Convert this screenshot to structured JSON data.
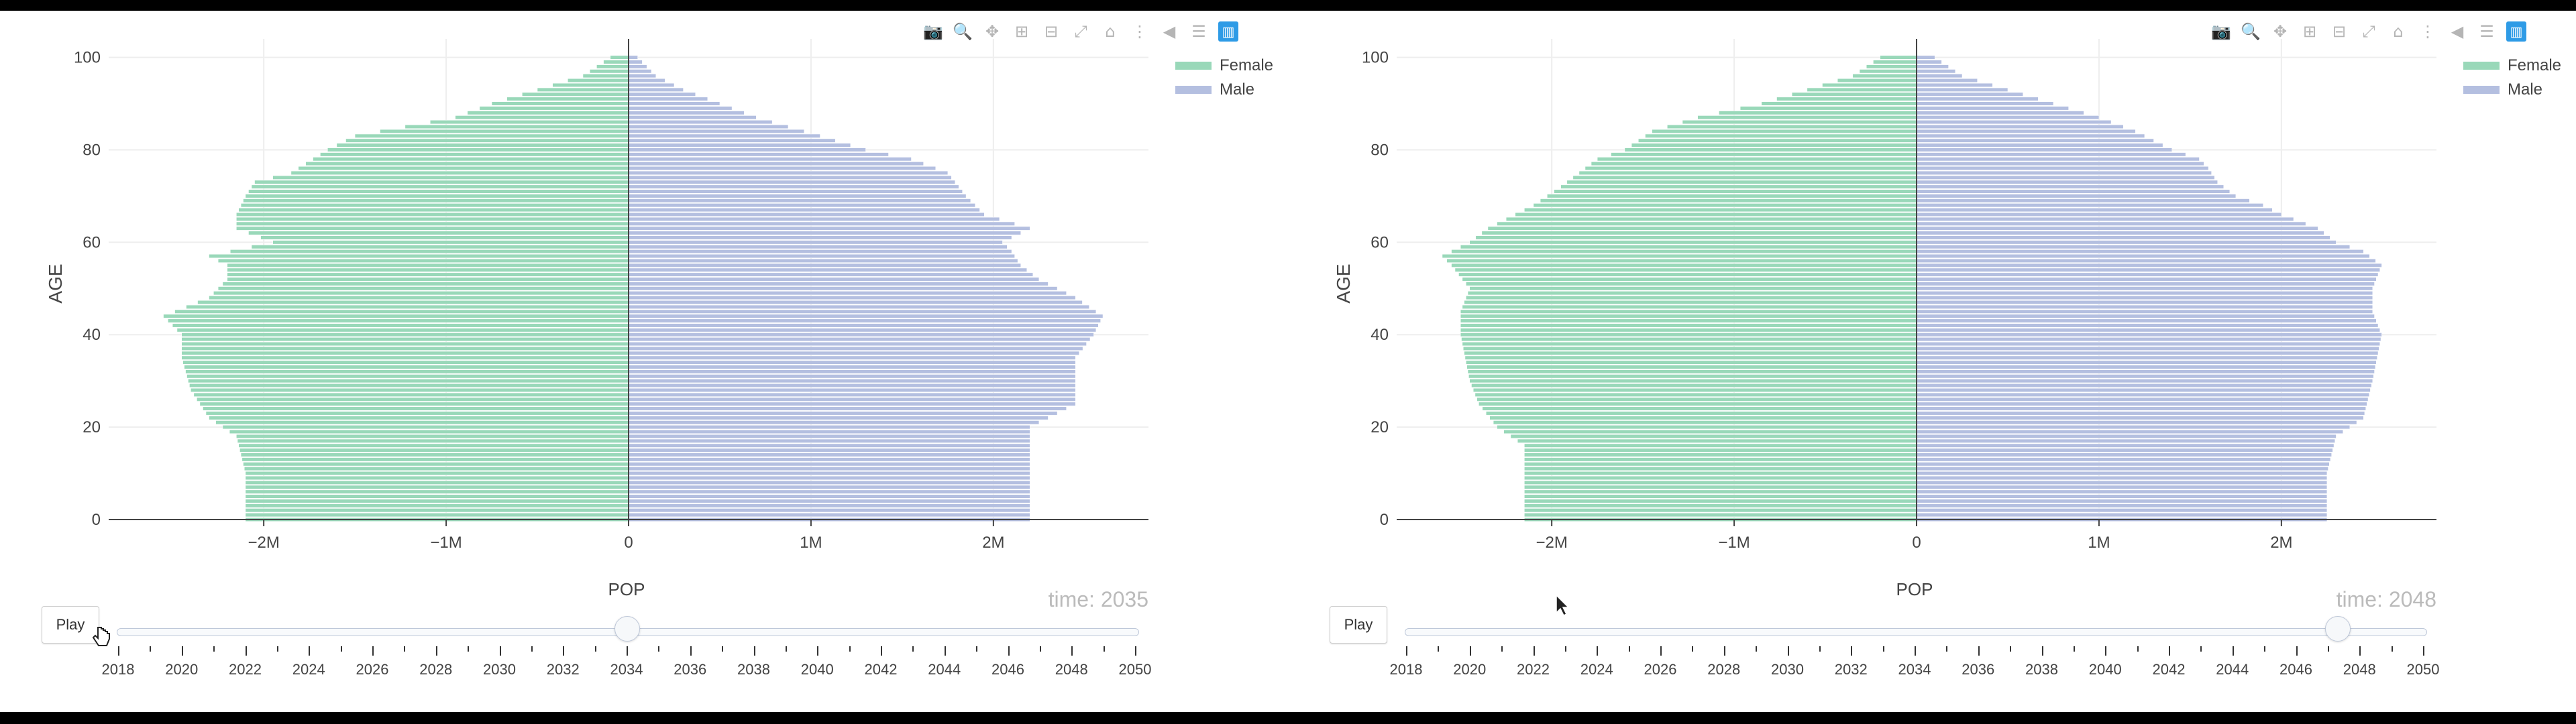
{
  "colors": {
    "female": "#99d8b9",
    "male": "#b4bfe0",
    "axis": "#444444",
    "grid": "#eeeeee",
    "modebar_active": "#2e9be6"
  },
  "modebar_icons": [
    "camera-icon",
    "zoom-icon",
    "pan-icon",
    "zoom-in-icon",
    "zoom-out-icon",
    "autoscale-icon",
    "home-icon",
    "spike-lines-icon",
    "hover-closest-icon",
    "hover-compare-icon",
    "plotly-logo-icon"
  ],
  "controls": {
    "play_label": "Play"
  },
  "panels": [
    {
      "time_label": "time: 2035",
      "slider_value": 2034
    },
    {
      "time_label": "time: 2048",
      "slider_value": 2047.3
    }
  ],
  "slider": {
    "years": [
      "2018",
      "2020",
      "2022",
      "2024",
      "2026",
      "2028",
      "2030",
      "2032",
      "2034",
      "2036",
      "2038",
      "2040",
      "2042",
      "2044",
      "2046",
      "2048",
      "2050"
    ],
    "min": 2018,
    "max": 2050
  },
  "chart_data": [
    {
      "type": "bar",
      "orientation": "horizontal",
      "xlabel": "POP",
      "ylabel": "AGE",
      "xlim": [
        -2.85,
        2.85
      ],
      "ylim": [
        0,
        104
      ],
      "x_ticks": [
        "−2M",
        "−1M",
        "0",
        "1M",
        "2M"
      ],
      "y_ticks": [
        "0",
        "20",
        "40",
        "60",
        "80",
        "100"
      ],
      "legend": {
        "position": "top-right",
        "entries": [
          "Female",
          "Male"
        ]
      },
      "series": [
        {
          "name": "Female",
          "color": "#99d8b9",
          "knots": [
            [
              0,
              -2.1
            ],
            [
              10,
              -2.1
            ],
            [
              18,
              -2.15
            ],
            [
              22,
              -2.3
            ],
            [
              28,
              -2.4
            ],
            [
              35,
              -2.45
            ],
            [
              40,
              -2.45
            ],
            [
              44,
              -2.55
            ],
            [
              48,
              -2.3
            ],
            [
              52,
              -2.2
            ],
            [
              55,
              -2.2
            ],
            [
              57,
              -2.3
            ],
            [
              60,
              -1.95
            ],
            [
              63,
              -2.15
            ],
            [
              66,
              -2.15
            ],
            [
              70,
              -2.1
            ],
            [
              73,
              -2.05
            ],
            [
              75,
              -1.85
            ],
            [
              80,
              -1.65
            ],
            [
              83,
              -1.5
            ],
            [
              87,
              -0.95
            ],
            [
              90,
              -0.75
            ],
            [
              93,
              -0.5
            ],
            [
              96,
              -0.25
            ],
            [
              100,
              -0.1
            ]
          ]
        },
        {
          "name": "Male",
          "color": "#b4bfe0",
          "knots": [
            [
              0,
              2.2
            ],
            [
              10,
              2.2
            ],
            [
              20,
              2.2
            ],
            [
              25,
              2.45
            ],
            [
              30,
              2.45
            ],
            [
              35,
              2.45
            ],
            [
              40,
              2.55
            ],
            [
              44,
              2.6
            ],
            [
              48,
              2.45
            ],
            [
              52,
              2.25
            ],
            [
              55,
              2.15
            ],
            [
              58,
              2.1
            ],
            [
              60,
              2.05
            ],
            [
              63,
              2.2
            ],
            [
              66,
              1.95
            ],
            [
              70,
              1.85
            ],
            [
              75,
              1.75
            ],
            [
              78,
              1.55
            ],
            [
              80,
              1.3
            ],
            [
              83,
              1.05
            ],
            [
              87,
              0.7
            ],
            [
              90,
              0.5
            ],
            [
              93,
              0.3
            ],
            [
              96,
              0.15
            ],
            [
              100,
              0.05
            ]
          ]
        }
      ]
    },
    {
      "type": "bar",
      "orientation": "horizontal",
      "xlabel": "POP",
      "ylabel": "AGE",
      "xlim": [
        -2.85,
        2.85
      ],
      "ylim": [
        0,
        104
      ],
      "x_ticks": [
        "−2M",
        "−1M",
        "0",
        "1M",
        "2M"
      ],
      "y_ticks": [
        "0",
        "20",
        "40",
        "60",
        "80",
        "100"
      ],
      "legend": {
        "position": "top-right",
        "entries": [
          "Female",
          "Male"
        ]
      },
      "series": [
        {
          "name": "Female",
          "color": "#99d8b9",
          "knots": [
            [
              0,
              -2.15
            ],
            [
              10,
              -2.15
            ],
            [
              16,
              -2.15
            ],
            [
              20,
              -2.3
            ],
            [
              25,
              -2.4
            ],
            [
              30,
              -2.45
            ],
            [
              40,
              -2.5
            ],
            [
              45,
              -2.5
            ],
            [
              50,
              -2.45
            ],
            [
              55,
              -2.55
            ],
            [
              57,
              -2.6
            ],
            [
              60,
              -2.45
            ],
            [
              63,
              -2.35
            ],
            [
              66,
              -2.2
            ],
            [
              68,
              -2.1
            ],
            [
              72,
              -1.95
            ],
            [
              75,
              -1.85
            ],
            [
              78,
              -1.75
            ],
            [
              80,
              -1.6
            ],
            [
              84,
              -1.45
            ],
            [
              87,
              -1.2
            ],
            [
              90,
              -0.85
            ],
            [
              93,
              -0.6
            ],
            [
              96,
              -0.35
            ],
            [
              100,
              -0.2
            ]
          ]
        },
        {
          "name": "Male",
          "color": "#b4bfe0",
          "knots": [
            [
              0,
              2.25
            ],
            [
              10,
              2.25
            ],
            [
              18,
              2.3
            ],
            [
              22,
              2.45
            ],
            [
              30,
              2.5
            ],
            [
              40,
              2.55
            ],
            [
              45,
              2.5
            ],
            [
              50,
              2.5
            ],
            [
              55,
              2.55
            ],
            [
              58,
              2.45
            ],
            [
              60,
              2.3
            ],
            [
              63,
              2.2
            ],
            [
              66,
              2.0
            ],
            [
              68,
              1.9
            ],
            [
              70,
              1.75
            ],
            [
              73,
              1.65
            ],
            [
              76,
              1.6
            ],
            [
              78,
              1.55
            ],
            [
              80,
              1.4
            ],
            [
              84,
              1.2
            ],
            [
              87,
              1.0
            ],
            [
              90,
              0.75
            ],
            [
              93,
              0.5
            ],
            [
              96,
              0.25
            ],
            [
              100,
              0.1
            ]
          ]
        }
      ]
    }
  ]
}
